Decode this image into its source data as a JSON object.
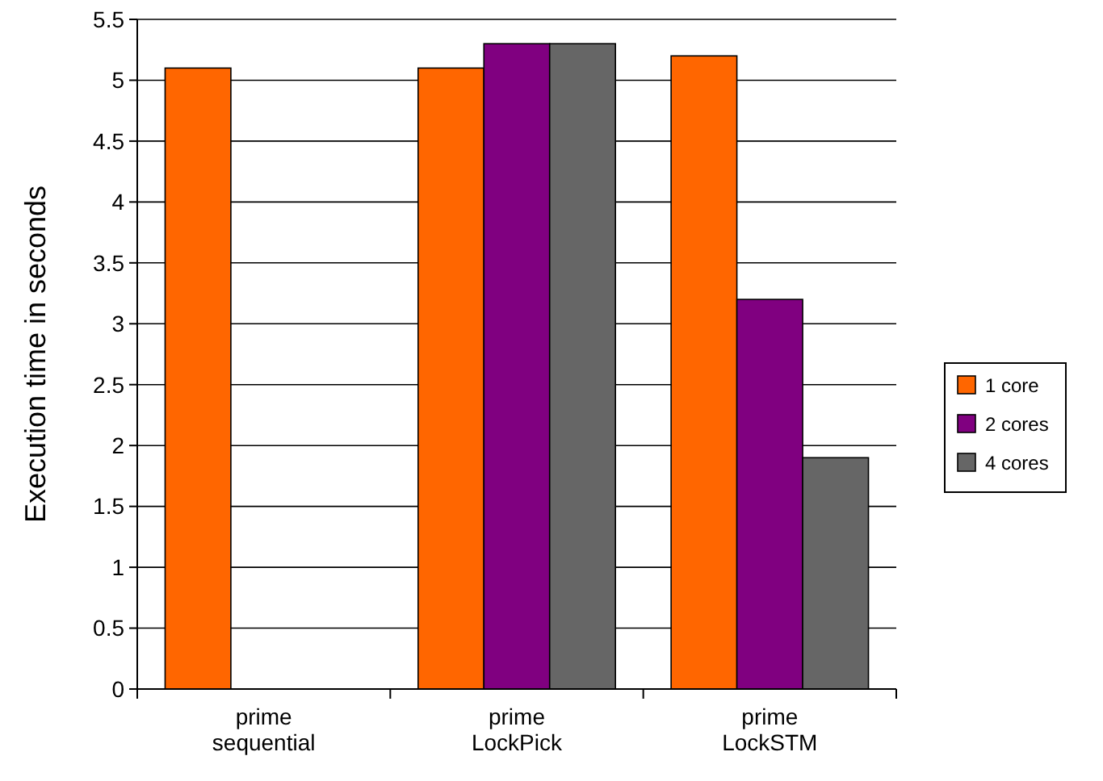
{
  "chart_data": {
    "type": "bar",
    "ylabel": "Execution time in seconds",
    "categories": [
      "prime sequential",
      "prime LockPick",
      "prime LockSTM"
    ],
    "series": [
      {
        "name": "1 core",
        "color": "#ff6600",
        "values": [
          5.1,
          5.1,
          5.2
        ]
      },
      {
        "name": "2 cores",
        "color": "#800080",
        "values": [
          null,
          5.3,
          3.2
        ]
      },
      {
        "name": "4 cores",
        "color": "#666666",
        "values": [
          null,
          5.3,
          1.9
        ]
      }
    ],
    "ylim": [
      0,
      5.5
    ],
    "yticks": [
      0,
      0.5,
      1,
      1.5,
      2,
      2.5,
      3,
      3.5,
      4,
      4.5,
      5,
      5.5
    ],
    "grid": "y",
    "legend": "right"
  }
}
